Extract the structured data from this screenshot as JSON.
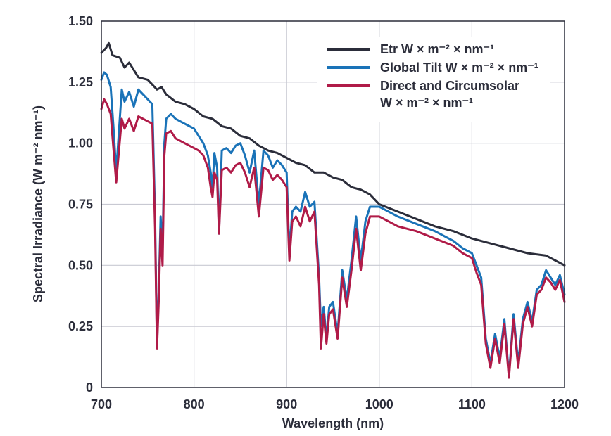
{
  "chart_data": {
    "type": "line",
    "title": "",
    "xlabel": "Wavelength (nm)",
    "ylabel": "Spectral Irradiance (W m⁻² nm⁻¹)",
    "xlim": [
      700,
      1200
    ],
    "ylim": [
      0,
      1.5
    ],
    "xticks": [
      700,
      800,
      900,
      1000,
      1100,
      1200
    ],
    "xtick_labels": [
      "700",
      "800",
      "900",
      "1000",
      "1100",
      "1200"
    ],
    "yticks": [
      0,
      0.25,
      0.5,
      0.75,
      1.0,
      1.25,
      1.5
    ],
    "ytick_labels": [
      "0",
      "0.25",
      "0.50",
      "0.75",
      "1.00",
      "1.25",
      "1.50"
    ],
    "grid": true,
    "legend_position": "top-right",
    "series": [
      {
        "name": "Etr W × m⁻² × nm⁻¹",
        "color": "#2b2d3a",
        "x": [
          700,
          705,
          708,
          712,
          720,
          725,
          730,
          740,
          750,
          760,
          765,
          770,
          780,
          790,
          800,
          810,
          820,
          830,
          840,
          850,
          860,
          870,
          880,
          890,
          900,
          910,
          920,
          930,
          940,
          950,
          960,
          970,
          980,
          990,
          1000,
          1020,
          1040,
          1060,
          1080,
          1100,
          1120,
          1140,
          1160,
          1180,
          1200
        ],
        "y": [
          1.37,
          1.39,
          1.41,
          1.36,
          1.35,
          1.31,
          1.33,
          1.27,
          1.26,
          1.22,
          1.23,
          1.2,
          1.17,
          1.16,
          1.14,
          1.11,
          1.1,
          1.07,
          1.06,
          1.03,
          1.02,
          0.99,
          0.97,
          0.96,
          0.94,
          0.92,
          0.91,
          0.88,
          0.88,
          0.86,
          0.85,
          0.82,
          0.81,
          0.79,
          0.75,
          0.72,
          0.69,
          0.66,
          0.64,
          0.61,
          0.59,
          0.57,
          0.55,
          0.54,
          0.5
        ]
      },
      {
        "name": "Global Tilt W × m⁻² × nm⁻¹",
        "color": "#1a73b8",
        "x": [
          700,
          703,
          706,
          710,
          713,
          716,
          719,
          722,
          725,
          730,
          735,
          740,
          745,
          750,
          755,
          758,
          760,
          762,
          764,
          766,
          768,
          770,
          775,
          780,
          790,
          800,
          805,
          810,
          815,
          818,
          820,
          822,
          825,
          827,
          830,
          835,
          840,
          845,
          850,
          855,
          860,
          865,
          870,
          875,
          880,
          885,
          890,
          895,
          900,
          903,
          906,
          910,
          915,
          920,
          925,
          930,
          935,
          937,
          940,
          943,
          946,
          950,
          955,
          960,
          965,
          970,
          975,
          980,
          985,
          990,
          1000,
          1010,
          1020,
          1040,
          1060,
          1080,
          1090,
          1100,
          1105,
          1110,
          1115,
          1120,
          1125,
          1130,
          1135,
          1140,
          1145,
          1150,
          1155,
          1160,
          1165,
          1170,
          1175,
          1180,
          1185,
          1190,
          1195,
          1200
        ],
        "y": [
          1.26,
          1.29,
          1.28,
          1.23,
          1.07,
          0.88,
          1.05,
          1.22,
          1.17,
          1.21,
          1.15,
          1.22,
          1.2,
          1.18,
          1.16,
          0.7,
          0.17,
          0.4,
          0.7,
          0.55,
          1.0,
          1.1,
          1.12,
          1.1,
          1.08,
          1.06,
          1.03,
          1.0,
          0.95,
          0.88,
          0.82,
          0.96,
          0.9,
          0.63,
          0.97,
          0.98,
          0.96,
          0.99,
          1.0,
          0.95,
          0.88,
          0.97,
          0.75,
          0.97,
          0.95,
          0.9,
          0.93,
          0.91,
          0.88,
          0.55,
          0.72,
          0.74,
          0.72,
          0.8,
          0.74,
          0.76,
          0.45,
          0.25,
          0.33,
          0.2,
          0.33,
          0.35,
          0.22,
          0.48,
          0.36,
          0.52,
          0.7,
          0.52,
          0.68,
          0.74,
          0.74,
          0.72,
          0.7,
          0.67,
          0.64,
          0.6,
          0.57,
          0.55,
          0.5,
          0.45,
          0.2,
          0.1,
          0.22,
          0.12,
          0.28,
          0.05,
          0.3,
          0.1,
          0.28,
          0.35,
          0.27,
          0.4,
          0.42,
          0.48,
          0.45,
          0.42,
          0.46,
          0.38
        ]
      },
      {
        "name": "Direct and Circumsolar W × m⁻² × nm⁻¹",
        "name_lines": [
          "Direct and Circumsolar",
          "W × m⁻² × nm⁻¹"
        ],
        "color": "#b01b48",
        "x": [
          700,
          703,
          706,
          710,
          713,
          716,
          719,
          722,
          725,
          730,
          735,
          740,
          745,
          750,
          755,
          758,
          760,
          762,
          764,
          766,
          768,
          770,
          775,
          780,
          790,
          800,
          805,
          810,
          815,
          818,
          820,
          822,
          825,
          827,
          830,
          835,
          840,
          845,
          850,
          855,
          860,
          865,
          870,
          875,
          880,
          885,
          890,
          895,
          900,
          903,
          906,
          910,
          915,
          920,
          925,
          930,
          935,
          937,
          940,
          943,
          946,
          950,
          955,
          960,
          965,
          970,
          975,
          980,
          985,
          990,
          1000,
          1010,
          1020,
          1040,
          1060,
          1080,
          1090,
          1100,
          1105,
          1110,
          1115,
          1120,
          1125,
          1130,
          1135,
          1140,
          1145,
          1150,
          1155,
          1160,
          1165,
          1170,
          1175,
          1180,
          1185,
          1190,
          1195,
          1200
        ],
        "y": [
          1.14,
          1.18,
          1.16,
          1.12,
          0.98,
          0.84,
          0.97,
          1.1,
          1.06,
          1.1,
          1.05,
          1.11,
          1.1,
          1.09,
          1.08,
          0.65,
          0.16,
          0.36,
          0.65,
          0.5,
          0.95,
          1.04,
          1.05,
          1.02,
          1.0,
          0.98,
          0.97,
          0.95,
          0.9,
          0.82,
          0.78,
          0.88,
          0.85,
          0.63,
          0.89,
          0.9,
          0.88,
          0.91,
          0.92,
          0.88,
          0.82,
          0.9,
          0.7,
          0.9,
          0.89,
          0.85,
          0.87,
          0.85,
          0.82,
          0.52,
          0.68,
          0.7,
          0.66,
          0.74,
          0.68,
          0.72,
          0.42,
          0.16,
          0.3,
          0.18,
          0.3,
          0.32,
          0.2,
          0.45,
          0.33,
          0.48,
          0.65,
          0.48,
          0.63,
          0.7,
          0.7,
          0.68,
          0.66,
          0.64,
          0.61,
          0.58,
          0.55,
          0.53,
          0.47,
          0.42,
          0.18,
          0.08,
          0.2,
          0.1,
          0.26,
          0.04,
          0.28,
          0.08,
          0.26,
          0.33,
          0.25,
          0.38,
          0.4,
          0.45,
          0.43,
          0.4,
          0.44,
          0.35
        ]
      }
    ]
  }
}
